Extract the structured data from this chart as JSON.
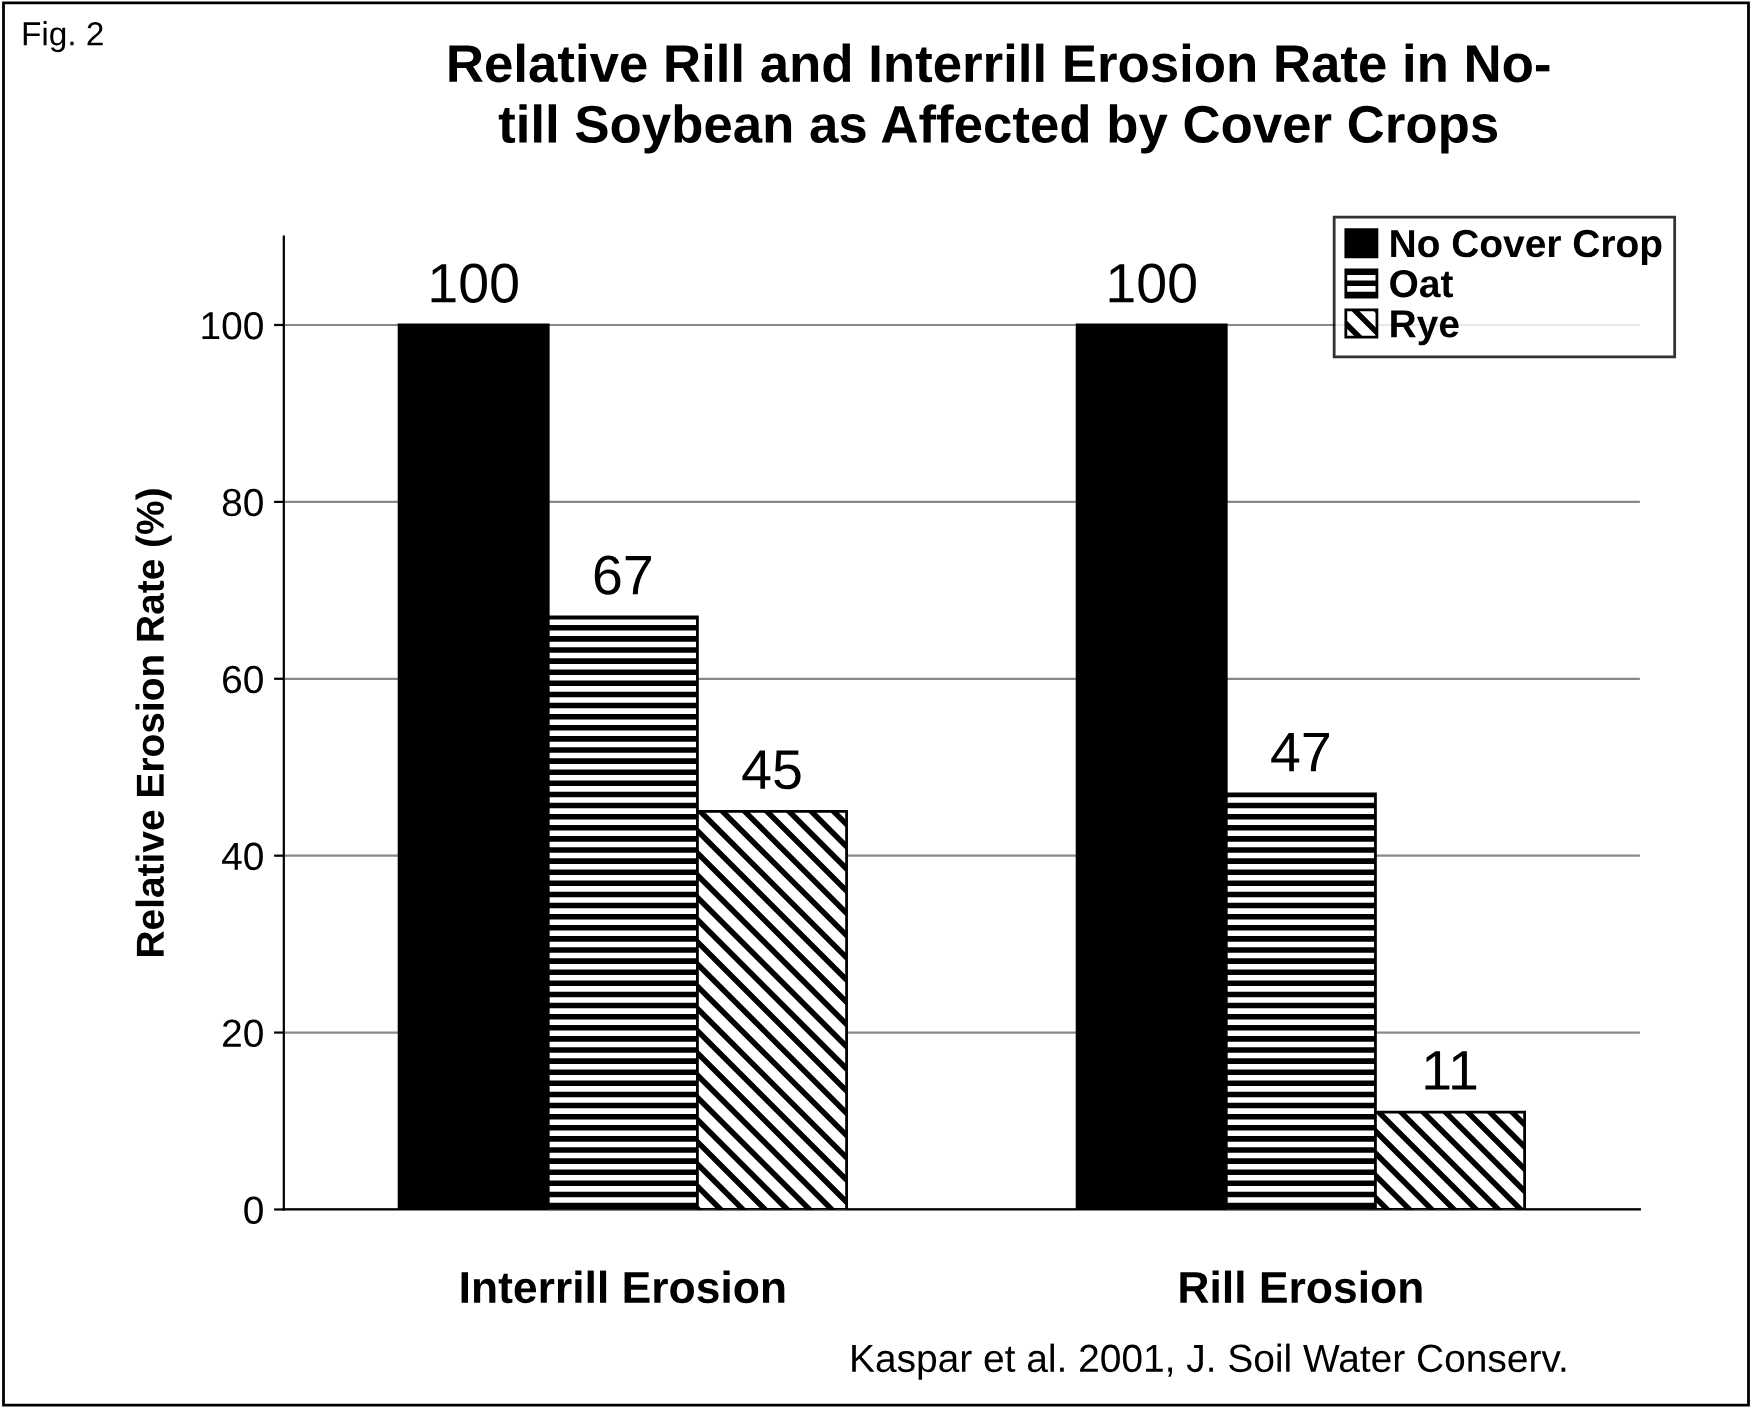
{
  "chart_data": {
    "type": "bar",
    "title": "Relative Rill and Interrill Erosion Rate in No-\ntill Soybean as Affected by Cover Crops",
    "ylabel": "Relative Erosion Rate (%)",
    "categories": [
      "Interrill Erosion",
      "Rill Erosion"
    ],
    "series": [
      {
        "name": "No Cover Crop",
        "color": "#000000",
        "values": [
          100,
          100
        ]
      },
      {
        "name": "Oat",
        "color": "#000000",
        "values": [
          67,
          47
        ]
      },
      {
        "name": "Rye",
        "color": "#000000",
        "values": [
          45,
          11
        ]
      }
    ],
    "ylim": [
      0,
      110
    ],
    "yticks": [
      0,
      20,
      40,
      60,
      80,
      100
    ],
    "grid": "y",
    "legend": "top right",
    "data_labels": true,
    "annotations": [
      "Fig. 2",
      "Kaspar et al. 2001, J. Soil Water Conserv."
    ]
  }
}
